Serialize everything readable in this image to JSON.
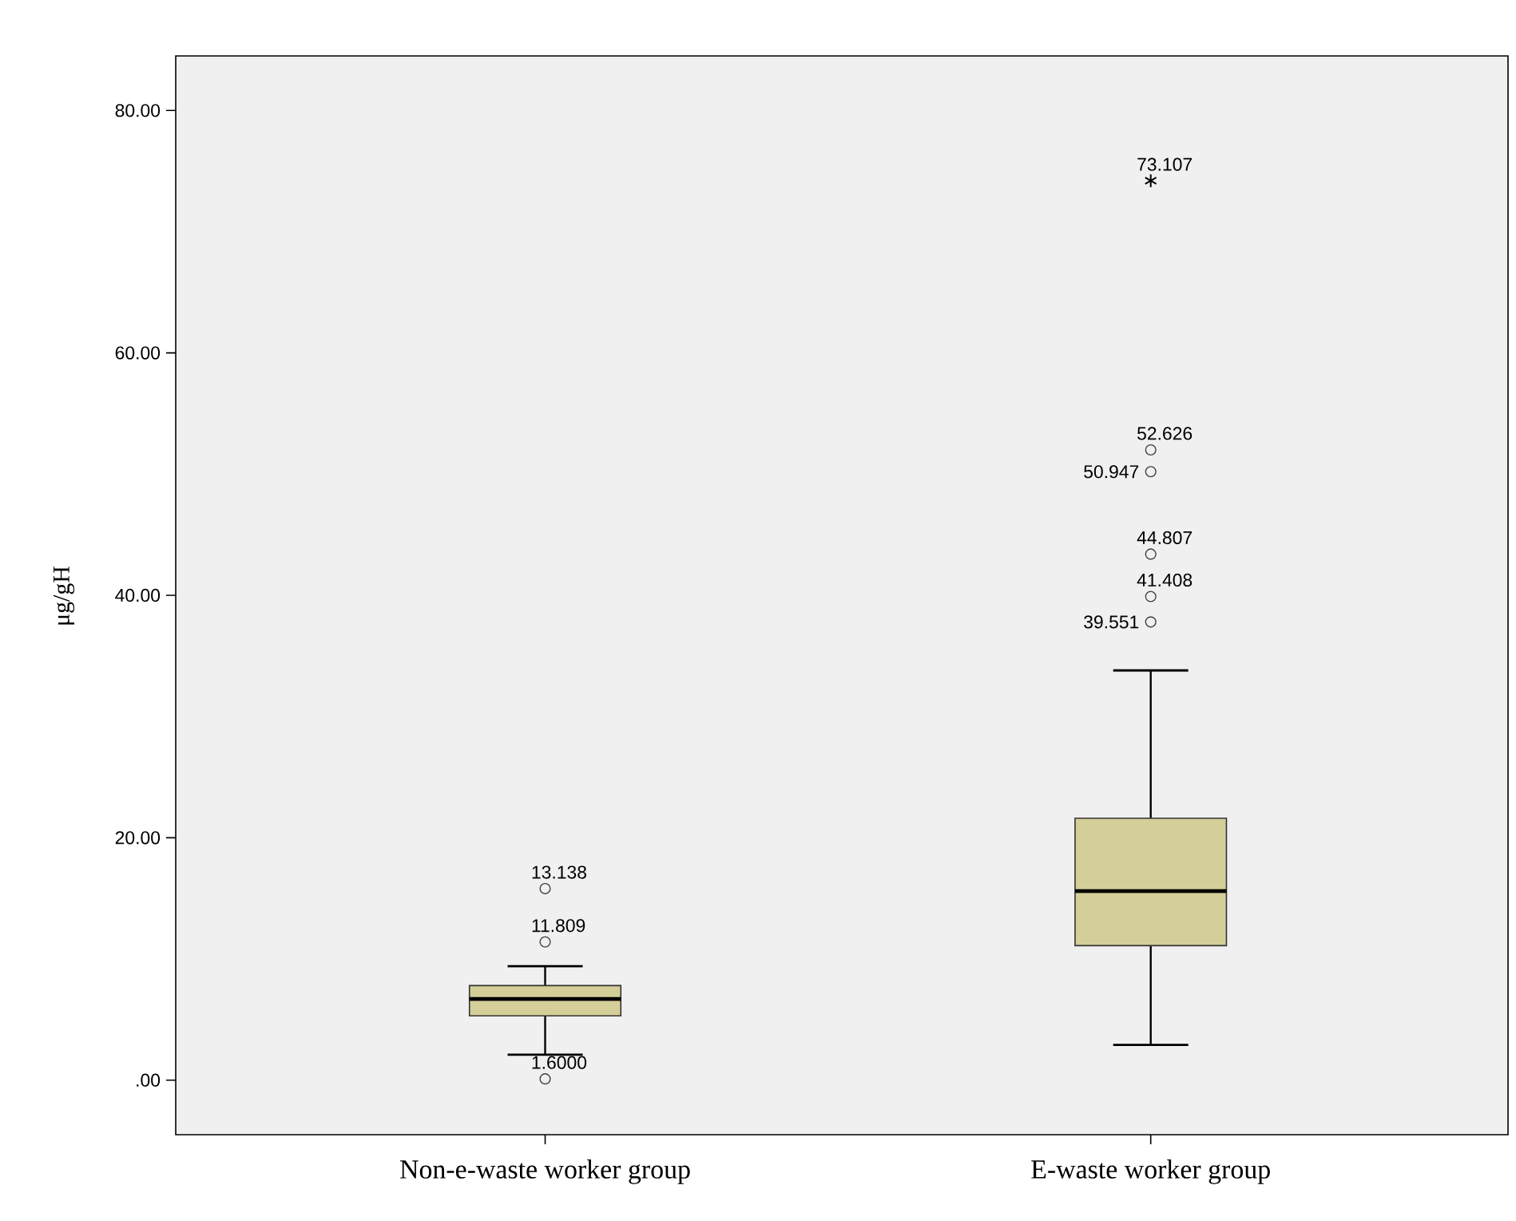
{
  "chart_data": {
    "type": "box",
    "ylabel": "μg/gH",
    "categories": [
      "Non-e-waste worker group",
      "E-waste worker group"
    ],
    "ylim": [
      -4.5,
      84.5
    ],
    "yticks": [
      {
        "value": 0,
        "label": ".00"
      },
      {
        "value": 20,
        "label": "20.00"
      },
      {
        "value": 40,
        "label": "40.00"
      },
      {
        "value": 60,
        "label": "60.00"
      },
      {
        "value": 80,
        "label": "80.00"
      }
    ],
    "series": [
      {
        "color": "#d4cf98",
        "boxes": [
          {
            "low": 2.1,
            "q1": 5.3,
            "median": 6.7,
            "q3": 7.8,
            "high": 9.4,
            "outliers": [
              15.8,
              11.4,
              0.1
            ]
          },
          {
            "low": 2.9,
            "q1": 11.1,
            "median": 15.6,
            "q3": 21.6,
            "high": 33.8,
            "outliers": [
              74.2,
              52.0,
              50.2,
              43.4,
              39.9,
              37.8
            ]
          }
        ]
      }
    ],
    "annotations": [
      "13.138",
      "11.809",
      "1.6000",
      "73.107",
      "52.626",
      "50.947",
      "44.807",
      "41.408",
      "39.551"
    ]
  }
}
